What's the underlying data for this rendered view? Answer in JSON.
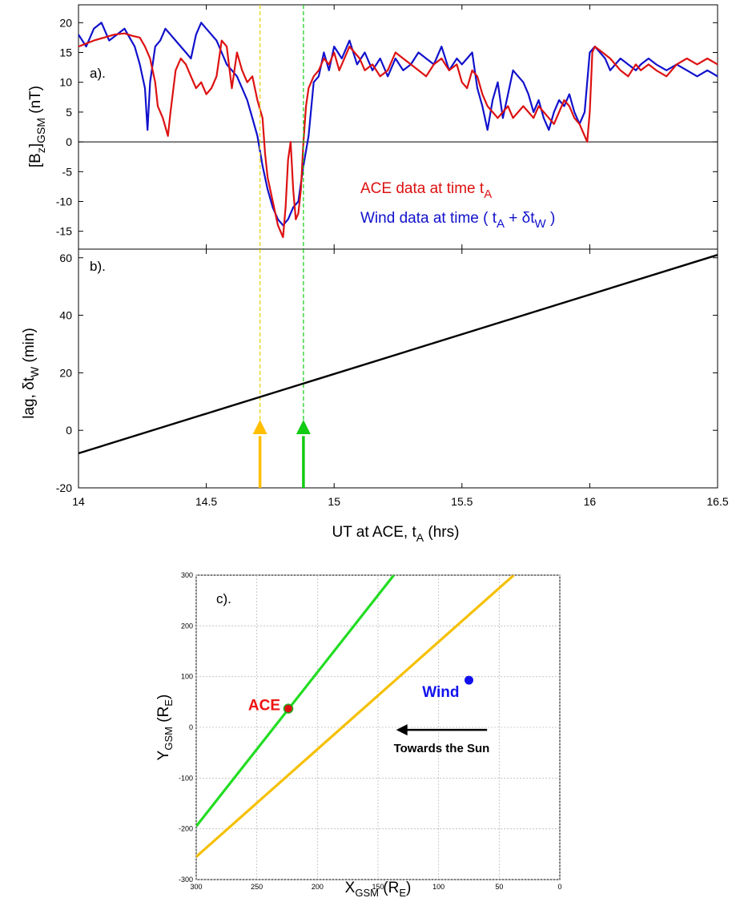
{
  "chart_data": [
    {
      "panel": "a",
      "type": "line",
      "panel_label": "a).",
      "ylabel_main": "[B",
      "ylabel_sub1": "z",
      "ylabel_mid": "]",
      "ylabel_sub2": "GSM",
      "ylabel_tail": " (nT)",
      "xlim": [
        14,
        16.5
      ],
      "ylim": [
        -18,
        23
      ],
      "yticks": [
        "20",
        "15",
        "10",
        "5",
        "0",
        "-5",
        "-10",
        "-15"
      ],
      "ytick_values": [
        20,
        15,
        10,
        5,
        0,
        -5,
        -10,
        -15
      ],
      "legend": [
        {
          "text": "ACE data at time t",
          "sub": "A",
          "tail": ""
        },
        {
          "text": "Wind data at time ( t",
          "sub": "A",
          "mid": " + δt",
          "sub2": "W",
          "tail": " )"
        }
      ],
      "series": [
        {
          "name": "ACE data at time tA",
          "color": "#dd1111",
          "x": [
            14.0,
            14.03,
            14.06,
            14.1,
            14.14,
            14.18,
            14.21,
            14.24,
            14.26,
            14.28,
            14.3,
            14.31,
            14.33,
            14.35,
            14.36,
            14.38,
            14.4,
            14.42,
            14.44,
            14.46,
            14.48,
            14.5,
            14.52,
            14.54,
            14.56,
            14.58,
            14.6,
            14.62,
            14.64,
            14.66,
            14.68,
            14.7,
            14.72,
            14.73,
            14.74,
            14.75,
            14.76,
            14.77,
            14.78,
            14.79,
            14.8,
            14.81,
            14.82,
            14.83,
            14.84,
            14.85,
            14.86,
            14.87,
            14.88,
            14.89,
            14.9,
            14.92,
            14.94,
            14.96,
            14.98,
            15.0,
            15.02,
            15.04,
            15.06,
            15.08,
            15.1,
            15.12,
            15.15,
            15.18,
            15.21,
            15.24,
            15.27,
            15.3,
            15.33,
            15.36,
            15.39,
            15.42,
            15.45,
            15.48,
            15.5,
            15.52,
            15.54,
            15.56,
            15.58,
            15.6,
            15.62,
            15.64,
            15.66,
            15.68,
            15.7,
            15.72,
            15.74,
            15.76,
            15.78,
            15.8,
            15.82,
            15.84,
            15.86,
            15.88,
            15.9,
            15.92,
            15.94,
            15.96,
            15.98,
            15.99,
            16.0,
            16.01,
            16.02,
            16.05,
            16.08,
            16.1,
            16.12,
            16.15,
            16.18,
            16.2,
            16.23,
            16.26,
            16.3,
            16.34,
            16.38,
            16.42,
            16.46,
            16.5
          ],
          "y": [
            16,
            16.5,
            17,
            17.5,
            18,
            18.2,
            17.8,
            17.5,
            16,
            14,
            10,
            6,
            4,
            1,
            5,
            12,
            14,
            13,
            11,
            9,
            10,
            8,
            9,
            11,
            17,
            16,
            9,
            15,
            12,
            10,
            11,
            7,
            4,
            -2,
            -6,
            -8,
            -10,
            -12,
            -14,
            -15,
            -16,
            -11,
            -3,
            0,
            -8,
            -13,
            -12,
            -8,
            0,
            6,
            9,
            11,
            12,
            14,
            13,
            15,
            12,
            14,
            16,
            15,
            14,
            12,
            13,
            11,
            12,
            15,
            14,
            13,
            12,
            11,
            13,
            14,
            12,
            13,
            10,
            9,
            12,
            11,
            8,
            6,
            5,
            4,
            5,
            6,
            4,
            5,
            6,
            5,
            4,
            6,
            5,
            4,
            3,
            5,
            7,
            6,
            4,
            3,
            1,
            0,
            5,
            15,
            16,
            15,
            14,
            13,
            12,
            11,
            13,
            12,
            13,
            12,
            11,
            13,
            14,
            13,
            14,
            13
          ]
        },
        {
          "name": "Wind data at time ( tA + δtW )",
          "color": "#1111cc",
          "x": [
            14.0,
            14.03,
            14.06,
            14.09,
            14.12,
            14.15,
            14.18,
            14.2,
            14.22,
            14.24,
            14.26,
            14.27,
            14.28,
            14.3,
            14.32,
            14.34,
            14.36,
            14.38,
            14.4,
            14.42,
            14.44,
            14.46,
            14.48,
            14.5,
            14.52,
            14.54,
            14.56,
            14.58,
            14.6,
            14.62,
            14.64,
            14.66,
            14.68,
            14.7,
            14.72,
            14.74,
            14.76,
            14.78,
            14.8,
            14.82,
            14.84,
            14.86,
            14.88,
            14.9,
            14.92,
            14.94,
            14.96,
            14.98,
            15.0,
            15.03,
            15.06,
            15.09,
            15.12,
            15.15,
            15.18,
            15.21,
            15.24,
            15.27,
            15.3,
            15.33,
            15.36,
            15.39,
            15.42,
            15.45,
            15.48,
            15.5,
            15.52,
            15.54,
            15.56,
            15.58,
            15.6,
            15.62,
            15.64,
            15.66,
            15.68,
            15.7,
            15.72,
            15.74,
            15.76,
            15.78,
            15.8,
            15.82,
            15.84,
            15.86,
            15.88,
            15.9,
            15.92,
            15.94,
            15.96,
            15.98,
            16.0,
            16.02,
            16.04,
            16.06,
            16.08,
            16.1,
            16.12,
            16.15,
            16.18,
            16.2,
            16.23,
            16.26,
            16.3,
            16.34,
            16.38,
            16.42,
            16.46,
            16.5
          ],
          "y": [
            18,
            16,
            19,
            20,
            17,
            18,
            19,
            17.5,
            16,
            13,
            9,
            2,
            10,
            16,
            17,
            19,
            18,
            17,
            16,
            15,
            14,
            18,
            20,
            19,
            18,
            17,
            15,
            13,
            12,
            11,
            9,
            7,
            4,
            1,
            -4,
            -8,
            -11,
            -13,
            -14,
            -13,
            -11,
            -10,
            -4,
            1,
            10,
            11,
            15,
            12,
            16,
            14,
            17,
            13,
            15,
            12,
            14,
            11,
            14,
            12,
            13,
            15,
            14,
            13,
            16,
            12,
            14,
            13,
            14,
            15,
            9,
            6,
            2,
            7,
            10,
            4,
            8,
            12,
            11,
            10,
            8,
            5,
            7,
            4,
            2,
            5,
            7,
            6,
            8,
            5,
            3,
            5,
            15,
            16,
            15,
            14,
            12,
            13,
            14,
            13,
            12,
            13,
            14,
            13,
            12,
            13,
            12,
            11,
            12,
            11
          ]
        }
      ]
    },
    {
      "panel": "b",
      "type": "line",
      "panel_label": "b).",
      "ylabel_main": "lag, δt",
      "ylabel_sub": "W",
      "ylabel_tail": " (min)",
      "xlabel_main": "UT at ACE, t",
      "xlabel_sub": "A",
      "xlabel_tail": " (hrs)",
      "xlim": [
        14,
        16.5
      ],
      "ylim": [
        -20,
        63
      ],
      "xticks": [
        "14",
        "14.5",
        "15",
        "15.5",
        "16",
        "16.5"
      ],
      "xtick_values": [
        14,
        14.5,
        15,
        15.5,
        16,
        16.5
      ],
      "yticks": [
        "60",
        "40",
        "20",
        "0",
        "-20"
      ],
      "ytick_values": [
        60,
        40,
        20,
        0,
        -20
      ],
      "series": [
        {
          "name": "",
          "color": "#000000",
          "x": [
            14.0,
            16.5
          ],
          "y": [
            -8,
            61
          ]
        }
      ],
      "markers": [
        {
          "x": 14.71,
          "color": "#ffbf00",
          "line_color": "#e6d200"
        },
        {
          "x": 14.88,
          "color": "#11cc11",
          "line_color": "#11cc11"
        }
      ]
    },
    {
      "panel": "c",
      "type": "line",
      "panel_label": "c).",
      "ylabel_main": "Y",
      "ylabel_sub": "GSM",
      "ylabel_tail": " (R",
      "ylabel_sub2": "E",
      "ylabel_end": ")",
      "xlabel_main": "X",
      "xlabel_sub": "GSM",
      "xlabel_tail": " (R",
      "xlabel_sub2": "E",
      "xlabel_end": ")",
      "xlim": [
        300,
        0
      ],
      "ylim": [
        -300,
        300
      ],
      "xticks": [
        "300",
        "250",
        "200",
        "150",
        "100",
        "50",
        "0"
      ],
      "xtick_values": [
        300,
        250,
        200,
        150,
        100,
        50,
        0
      ],
      "yticks": [
        "300",
        "200",
        "100",
        "0",
        "-100",
        "-200",
        "-300"
      ],
      "ytick_values": [
        300,
        200,
        100,
        0,
        -100,
        -200,
        -300
      ],
      "grid": true,
      "series": [
        {
          "name": "",
          "color": "#22dd22",
          "x": [
            300,
            137
          ],
          "y": [
            -195,
            300
          ]
        },
        {
          "name": "",
          "color": "#f5c000",
          "x": [
            300,
            38
          ],
          "y": [
            -255,
            300
          ]
        }
      ],
      "points": [
        {
          "label": "ACE",
          "x": 224,
          "y": 37,
          "color": "#dd1111",
          "label_color": "#ee1111"
        },
        {
          "label": "Wind",
          "x": 75,
          "y": 93,
          "color": "#1111ee",
          "label_color": "#1111ee"
        }
      ],
      "arrow": {
        "label": "Towards the Sun",
        "x_from": 60,
        "x_to": 135,
        "y": -5
      }
    }
  ]
}
